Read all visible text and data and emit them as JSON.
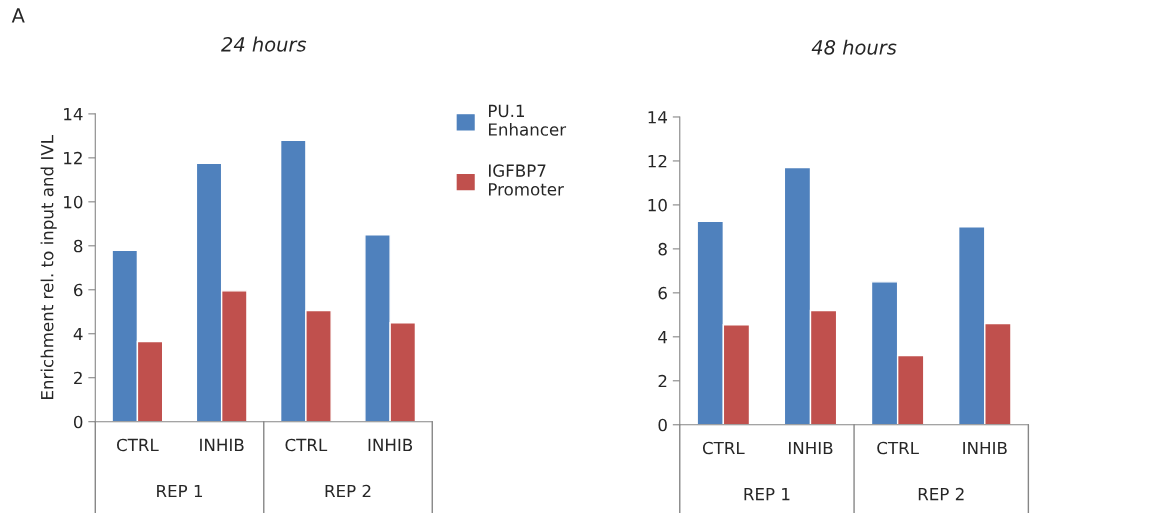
{
  "chart_data": [
    {
      "type": "bar",
      "title": "24 hours",
      "ylabel": "Enrichment rel. to input and IVL",
      "categories": [
        "CTRL",
        "INHIB",
        "CTRL",
        "INHIB"
      ],
      "series": [
        {
          "name": "PU.1 Enhancer",
          "color": "#4f81bd",
          "values": [
            7.8,
            11.75,
            12.8,
            8.5
          ]
        },
        {
          "name": "IGFBP7 Promoter",
          "color": "#c0504d",
          "values": [
            3.65,
            5.95,
            5.05,
            4.5
          ]
        }
      ],
      "ylim": [
        0,
        14
      ],
      "yticks": [
        0,
        2,
        4,
        6,
        8,
        10,
        12,
        14
      ],
      "grid": false,
      "legend": "right",
      "annotations": [
        "A",
        "REP 1",
        "REP 2"
      ]
    },
    {
      "type": "bar",
      "title": "48 hours",
      "categories": [
        "CTRL",
        "INHIB",
        "CTRL",
        "INHIB"
      ],
      "series": [
        {
          "color": "#4f81bd",
          "values": [
            9.25,
            11.7,
            6.5,
            9.0
          ]
        },
        {
          "color": "#c0504d",
          "values": [
            4.55,
            5.2,
            3.15,
            4.6
          ]
        }
      ],
      "ylim": [
        0,
        14
      ],
      "yticks": [
        0,
        2,
        4,
        6,
        8,
        10,
        12,
        14
      ],
      "grid": false,
      "annotations": [
        "REP 1",
        "REP 2"
      ]
    }
  ]
}
